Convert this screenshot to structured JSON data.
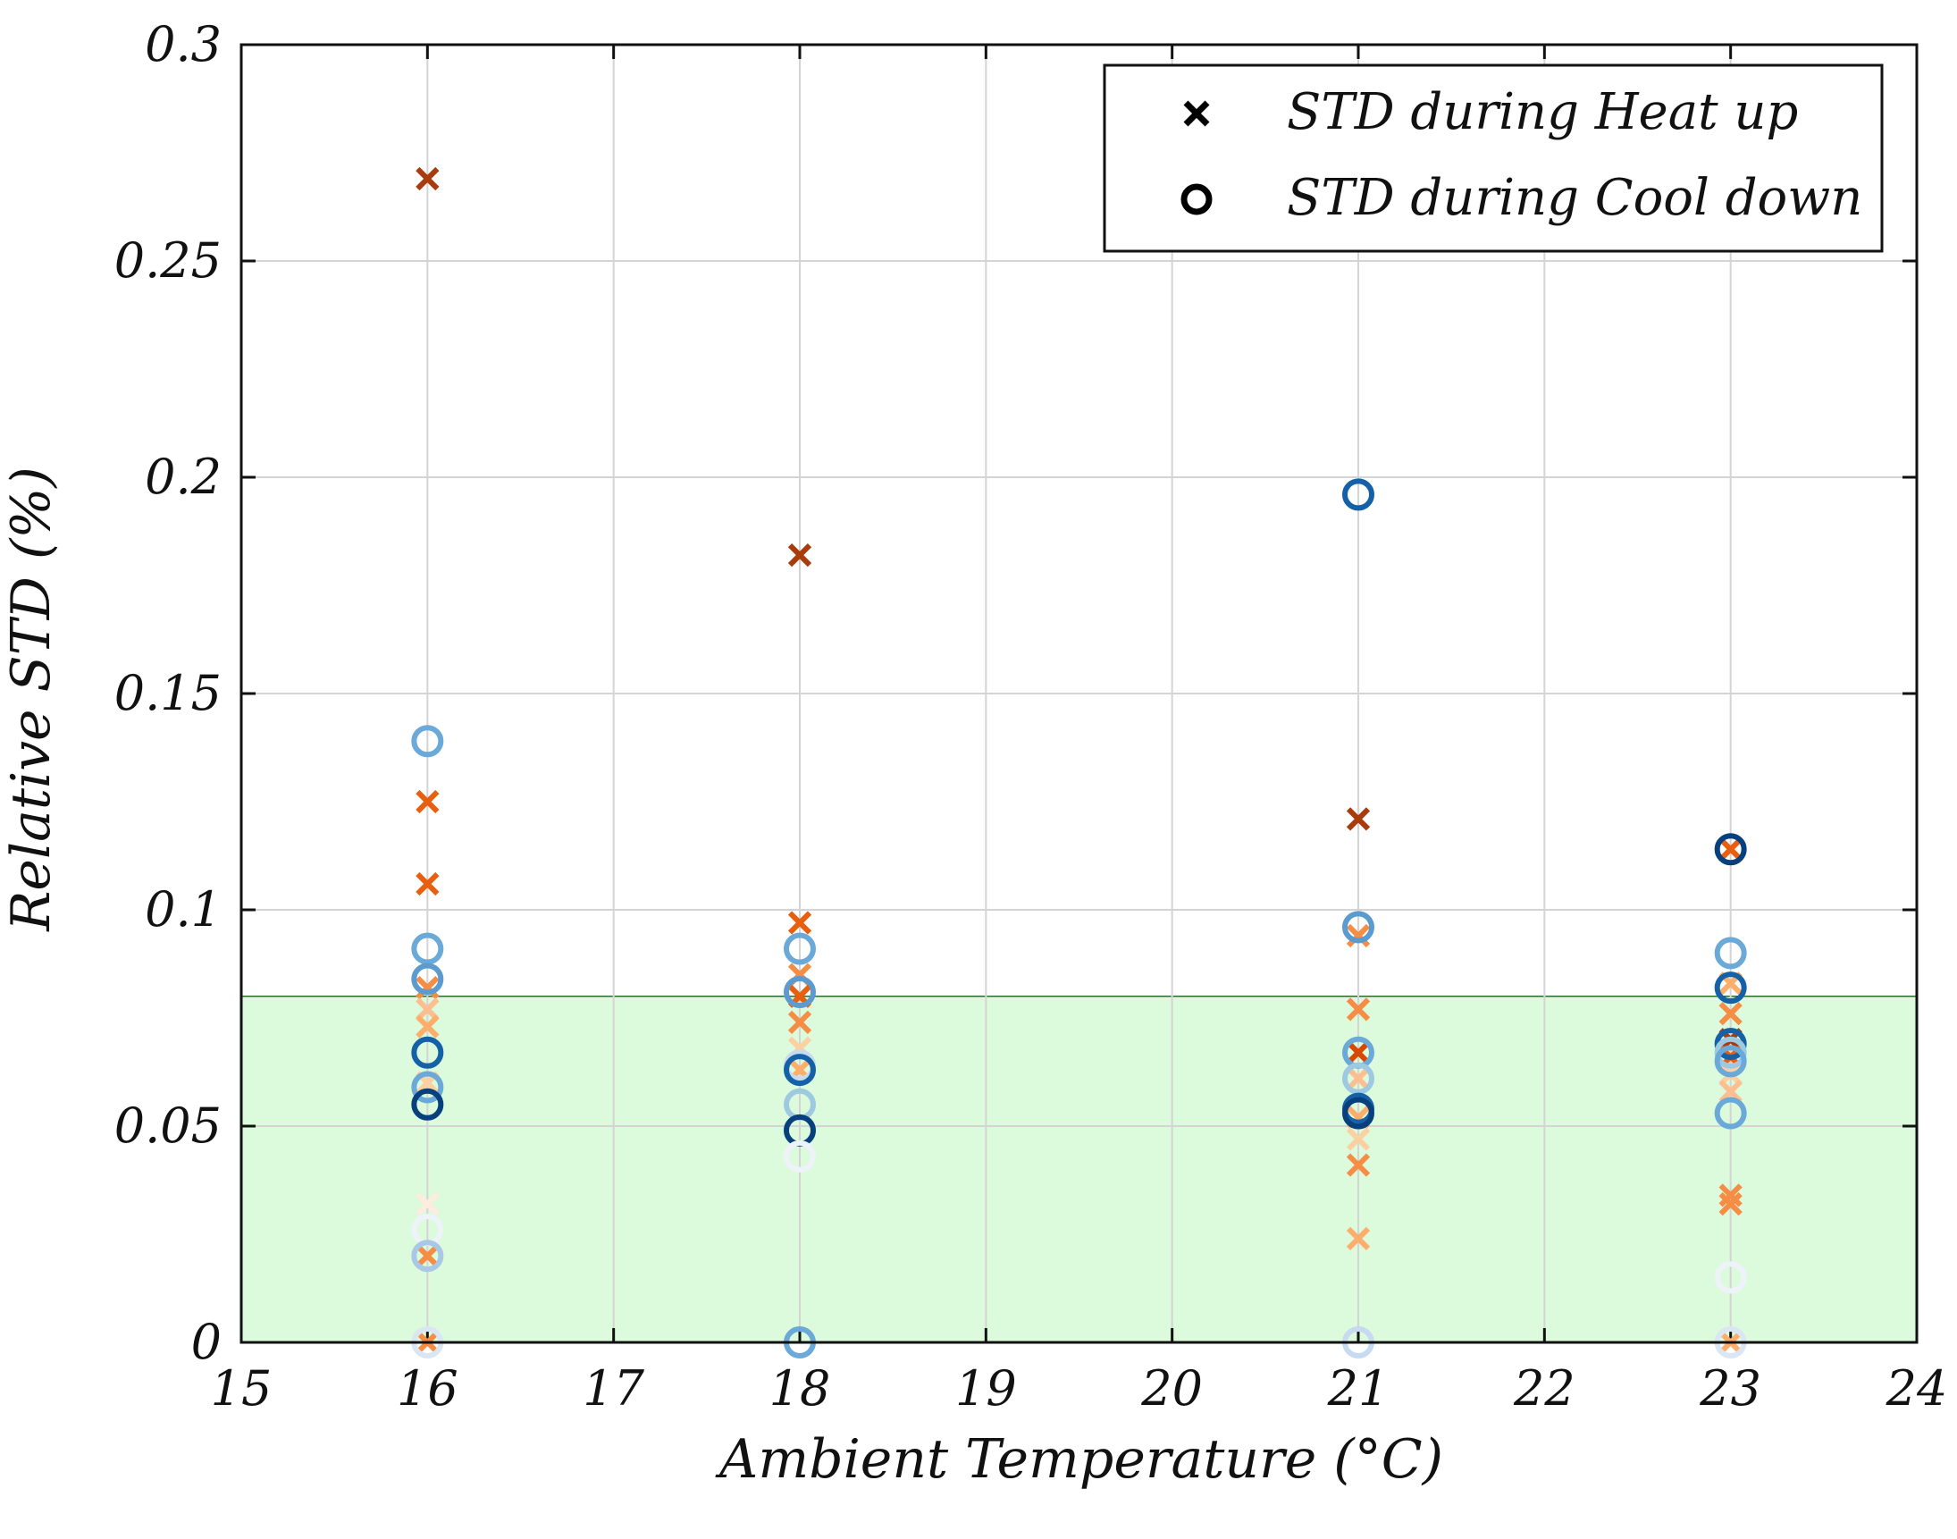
{
  "chart_data": {
    "type": "scatter",
    "xlabel": "Ambient Temperature (°C)",
    "ylabel": "Relative STD (%)",
    "xlim": [
      15,
      24
    ],
    "ylim": [
      0,
      0.3
    ],
    "xticks": [
      {
        "value": 15,
        "label": "15"
      },
      {
        "value": 16,
        "label": "16"
      },
      {
        "value": 17,
        "label": "17"
      },
      {
        "value": 18,
        "label": "18"
      },
      {
        "value": 19,
        "label": "19"
      },
      {
        "value": 20,
        "label": "20"
      },
      {
        "value": 21,
        "label": "21"
      },
      {
        "value": 22,
        "label": "22"
      },
      {
        "value": 23,
        "label": "23"
      },
      {
        "value": 24,
        "label": "24"
      }
    ],
    "yticks": [
      {
        "value": 0,
        "label": "0"
      },
      {
        "value": 0.05,
        "label": "0.05"
      },
      {
        "value": 0.1,
        "label": "0.1"
      },
      {
        "value": 0.15,
        "label": "0.15"
      },
      {
        "value": 0.2,
        "label": "0.2"
      },
      {
        "value": 0.25,
        "label": "0.25"
      },
      {
        "value": 0.3,
        "label": "0.3"
      }
    ],
    "grid": true,
    "shaded_band": {
      "y_from": 0,
      "y_to": 0.08,
      "color": "#dcfadc"
    },
    "legend": {
      "position": "top-right",
      "entries": [
        {
          "marker": "x",
          "label": "STD during Heat up"
        },
        {
          "marker": "o",
          "label": "STD during Cool down"
        }
      ]
    },
    "series": [
      {
        "name": "STD during Heat up",
        "marker": "x",
        "points": [
          {
            "x": 16,
            "y": 0.269,
            "color": "#a83c0c"
          },
          {
            "x": 16,
            "y": 0.125,
            "color": "#e8600f"
          },
          {
            "x": 16,
            "y": 0.106,
            "color": "#e8600f"
          },
          {
            "x": 16,
            "y": 0.082,
            "color": "#f68d45"
          },
          {
            "x": 16,
            "y": 0.077,
            "color": "#fdbf8f"
          },
          {
            "x": 16,
            "y": 0.073,
            "color": "#fdae6b"
          },
          {
            "x": 16,
            "y": 0.06,
            "color": "#fdd0a2"
          },
          {
            "x": 16,
            "y": 0.032,
            "color": "#feeddf"
          },
          {
            "x": 16,
            "y": 0.02,
            "color": "#f68d45"
          },
          {
            "x": 16,
            "y": 0.0,
            "color": "#f68d45"
          },
          {
            "x": 18,
            "y": 0.182,
            "color": "#a83c0c"
          },
          {
            "x": 18,
            "y": 0.097,
            "color": "#e8600f"
          },
          {
            "x": 18,
            "y": 0.085,
            "color": "#f68d45"
          },
          {
            "x": 18,
            "y": 0.08,
            "color": "#e8600f"
          },
          {
            "x": 18,
            "y": 0.074,
            "color": "#f68d45"
          },
          {
            "x": 18,
            "y": 0.068,
            "color": "#fdd0a2"
          },
          {
            "x": 18,
            "y": 0.063,
            "color": "#fdae6b"
          },
          {
            "x": 21,
            "y": 0.121,
            "color": "#a83c0c"
          },
          {
            "x": 21,
            "y": 0.094,
            "color": "#f68d45"
          },
          {
            "x": 21,
            "y": 0.077,
            "color": "#f68d45"
          },
          {
            "x": 21,
            "y": 0.067,
            "color": "#d94801"
          },
          {
            "x": 21,
            "y": 0.061,
            "color": "#fdbf8f"
          },
          {
            "x": 21,
            "y": 0.052,
            "color": "#fdae6b"
          },
          {
            "x": 21,
            "y": 0.047,
            "color": "#fdd0a2"
          },
          {
            "x": 21,
            "y": 0.041,
            "color": "#f68d45"
          },
          {
            "x": 21,
            "y": 0.024,
            "color": "#fdae6b"
          },
          {
            "x": 23,
            "y": 0.114,
            "color": "#e8600f"
          },
          {
            "x": 23,
            "y": 0.083,
            "color": "#fdae6b"
          },
          {
            "x": 23,
            "y": 0.076,
            "color": "#f68d45"
          },
          {
            "x": 23,
            "y": 0.07,
            "color": "#a83c0c"
          },
          {
            "x": 23,
            "y": 0.066,
            "color": "#e8600f"
          },
          {
            "x": 23,
            "y": 0.062,
            "color": "#fdd0a2"
          },
          {
            "x": 23,
            "y": 0.058,
            "color": "#fdbf8f"
          },
          {
            "x": 23,
            "y": 0.034,
            "color": "#f68d45"
          },
          {
            "x": 23,
            "y": 0.032,
            "color": "#f68d45"
          },
          {
            "x": 23,
            "y": 0.0,
            "color": "#fdae6b"
          }
        ]
      },
      {
        "name": "STD during Cool down",
        "marker": "o",
        "points": [
          {
            "x": 16,
            "y": 0.139,
            "color": "#6aa9d8"
          },
          {
            "x": 16,
            "y": 0.091,
            "color": "#6aa9d8"
          },
          {
            "x": 16,
            "y": 0.084,
            "color": "#5b9bd0"
          },
          {
            "x": 16,
            "y": 0.067,
            "color": "#1561a8"
          },
          {
            "x": 16,
            "y": 0.059,
            "color": "#6aa9d8"
          },
          {
            "x": 16,
            "y": 0.055,
            "color": "#08407e"
          },
          {
            "x": 16,
            "y": 0.026,
            "color": "#eef3fa"
          },
          {
            "x": 16,
            "y": 0.02,
            "color": "#a9c8e6"
          },
          {
            "x": 16,
            "y": 0.0,
            "color": "#dbe6f3"
          },
          {
            "x": 18,
            "y": 0.091,
            "color": "#6aa9d8"
          },
          {
            "x": 18,
            "y": 0.081,
            "color": "#5b9bd0"
          },
          {
            "x": 18,
            "y": 0.064,
            "color": "#c6dbef"
          },
          {
            "x": 18,
            "y": 0.063,
            "color": "#1561a8"
          },
          {
            "x": 18,
            "y": 0.055,
            "color": "#9ecae1"
          },
          {
            "x": 18,
            "y": 0.049,
            "color": "#08407e"
          },
          {
            "x": 18,
            "y": 0.043,
            "color": "#eef3fa"
          },
          {
            "x": 18,
            "y": 0.0,
            "color": "#6aa9d8"
          },
          {
            "x": 21,
            "y": 0.196,
            "color": "#1561a8"
          },
          {
            "x": 21,
            "y": 0.096,
            "color": "#5b9bd0"
          },
          {
            "x": 21,
            "y": 0.067,
            "color": "#6aa9d8"
          },
          {
            "x": 21,
            "y": 0.061,
            "color": "#9ecae1"
          },
          {
            "x": 21,
            "y": 0.054,
            "color": "#1561a8"
          },
          {
            "x": 21,
            "y": 0.053,
            "color": "#08407e"
          },
          {
            "x": 21,
            "y": 0.0,
            "color": "#c6dbef"
          },
          {
            "x": 23,
            "y": 0.114,
            "color": "#08407e"
          },
          {
            "x": 23,
            "y": 0.09,
            "color": "#6aa9d8"
          },
          {
            "x": 23,
            "y": 0.082,
            "color": "#1561a8"
          },
          {
            "x": 23,
            "y": 0.069,
            "color": "#1561a8"
          },
          {
            "x": 23,
            "y": 0.067,
            "color": "#9ecae1"
          },
          {
            "x": 23,
            "y": 0.065,
            "color": "#6aa9d8"
          },
          {
            "x": 23,
            "y": 0.053,
            "color": "#6aa9d8"
          },
          {
            "x": 23,
            "y": 0.015,
            "color": "#eef3fa"
          },
          {
            "x": 23,
            "y": 0.0,
            "color": "#dbe6f3"
          }
        ]
      }
    ]
  }
}
